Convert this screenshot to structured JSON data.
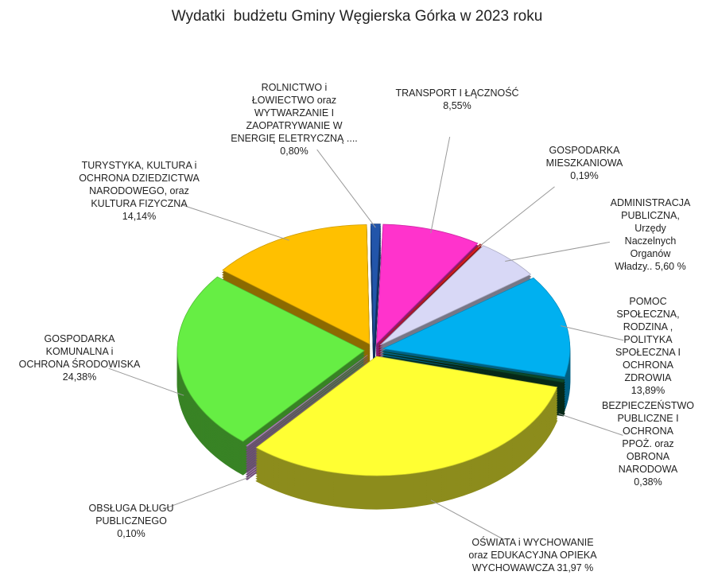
{
  "chart_data": {
    "type": "pie",
    "title": "Wydatki  budżetu Gminy Węgierska Górka w 2023 roku",
    "categories": [
      "TRANSPORT I ŁĄCZNOŚĆ",
      "GOSPODARKA\nMIESZKANIOWA",
      "ADMINISTRACJA\nPUBLICZNA, Urzędy\nNaczelnych Organów\nWładzy..",
      "POMOC  SPOŁECZNA,\nRODZINA , POLITYKA\nSPOŁECZNA I OCHRONA\nZDROWIA",
      "BEZPIECZEŃSTWO\nPUBLICZNE I OCHRONA\nPPOŻ. oraz OBRONA\nNARODOWA",
      "OŚWIATA  i  WYCHOWANIE\noraz EDUKACYJNA OPIEKA\nWYCHOWAWCZA",
      "OBSŁUGA DŁUGU\nPUBLICZNEGO",
      "GOSPODARKA\nKOMUNALNA  i\nOCHRONA  ŚRODOWISKA",
      "TURYSTYKA, KULTURA i\nOCHRONA DZIEDZICTWA\nNARODOWEGO, oraz\nKULTURA FIZYCZNA",
      "ROLNICTWO i\nŁOWIECTWO  oraz\nWYTWARZANIE I\nZAOPATRYWANIE W\nENERGIĘ ELETRYCZNĄ ...."
    ],
    "values": [
      8.55,
      0.19,
      5.6,
      13.89,
      0.38,
      31.97,
      0.1,
      24.38,
      14.14,
      0.8
    ],
    "value_labels": [
      "8,55%",
      "0,19%",
      "5,60 %",
      "13,89%",
      "0,38%",
      "31,97 %",
      "0,10%",
      "24,38%",
      "14,14%",
      "0,80%"
    ],
    "colors": [
      "#ff33cc",
      "#e02020",
      "#d8d8f6",
      "#00b0f0",
      "#0b4a2c",
      "#ffff33",
      "#cc88dd",
      "#66ee44",
      "#ffc000",
      "#2255aa"
    ]
  }
}
